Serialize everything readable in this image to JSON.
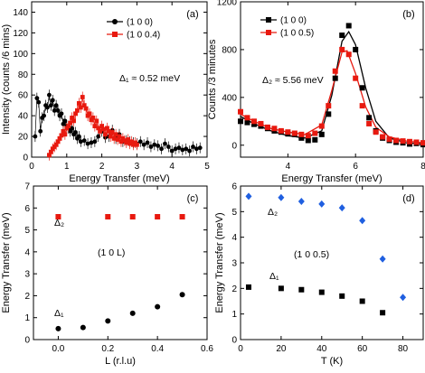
{
  "chart_data": [
    {
      "panel": "(a)",
      "type": "scatter",
      "xlabel": "Energy Transfer (meV)",
      "ylabel": "Intensity (counts /6 mins)",
      "xlim": [
        0,
        5
      ],
      "ylim": [
        0,
        150
      ],
      "xticks": [
        0,
        1,
        2,
        3,
        4,
        5
      ],
      "yticks": [
        0,
        20,
        40,
        60,
        80,
        100,
        120,
        140
      ],
      "annotation": "Δ₁ ≈ 0.52 meV",
      "legend": "top-right",
      "series": [
        {
          "name": "(1 0 0)",
          "color": "#000000",
          "marker": "circle",
          "points": [
            [
              0.1,
              20
            ],
            [
              0.15,
              57
            ],
            [
              0.2,
              53
            ],
            [
              0.25,
              25
            ],
            [
              0.3,
              38
            ],
            [
              0.35,
              40
            ],
            [
              0.4,
              50
            ],
            [
              0.45,
              48
            ],
            [
              0.5,
              60
            ],
            [
              0.55,
              50
            ],
            [
              0.6,
              55
            ],
            [
              0.65,
              45
            ],
            [
              0.7,
              50
            ],
            [
              0.75,
              45
            ],
            [
              0.8,
              40
            ],
            [
              0.85,
              42
            ],
            [
              0.9,
              32
            ],
            [
              0.95,
              35
            ],
            [
              1.0,
              30
            ],
            [
              1.05,
              28
            ],
            [
              1.1,
              25
            ],
            [
              1.15,
              28
            ],
            [
              1.2,
              22
            ],
            [
              1.25,
              24
            ],
            [
              1.3,
              18
            ],
            [
              1.35,
              20
            ],
            [
              1.4,
              15
            ],
            [
              1.5,
              16
            ],
            [
              1.6,
              13
            ],
            [
              1.7,
              14
            ],
            [
              1.8,
              15
            ],
            [
              1.9,
              20
            ],
            [
              2.0,
              25
            ],
            [
              2.1,
              19
            ],
            [
              2.2,
              20
            ],
            [
              2.3,
              26
            ],
            [
              2.4,
              18
            ],
            [
              2.5,
              22
            ],
            [
              2.6,
              15
            ],
            [
              2.7,
              16
            ],
            [
              2.8,
              15
            ],
            [
              2.9,
              14
            ],
            [
              3.0,
              13
            ],
            [
              3.1,
              15
            ],
            [
              3.2,
              12
            ],
            [
              3.3,
              14
            ],
            [
              3.4,
              10
            ],
            [
              3.5,
              12
            ],
            [
              3.6,
              11
            ],
            [
              3.7,
              8
            ],
            [
              3.8,
              13
            ],
            [
              3.9,
              10
            ],
            [
              4.0,
              6
            ],
            [
              4.1,
              8
            ],
            [
              4.2,
              9
            ],
            [
              4.3,
              7
            ],
            [
              4.4,
              8
            ],
            [
              4.5,
              6
            ],
            [
              4.6,
              10
            ],
            [
              4.7,
              8
            ],
            [
              4.8,
              9
            ]
          ]
        },
        {
          "name": "(1 0 0.4)",
          "color": "#e8190f",
          "marker": "square",
          "points": [
            [
              0.5,
              2
            ],
            [
              0.55,
              5
            ],
            [
              0.6,
              8
            ],
            [
              0.65,
              10
            ],
            [
              0.7,
              12
            ],
            [
              0.75,
              15
            ],
            [
              0.8,
              18
            ],
            [
              0.85,
              21
            ],
            [
              0.9,
              25
            ],
            [
              0.95,
              22
            ],
            [
              1.0,
              28
            ],
            [
              1.05,
              30
            ],
            [
              1.1,
              33
            ],
            [
              1.15,
              38
            ],
            [
              1.2,
              35
            ],
            [
              1.25,
              42
            ],
            [
              1.3,
              45
            ],
            [
              1.35,
              52
            ],
            [
              1.4,
              48
            ],
            [
              1.45,
              58
            ],
            [
              1.5,
              50
            ],
            [
              1.55,
              47
            ],
            [
              1.6,
              40
            ],
            [
              1.65,
              42
            ],
            [
              1.7,
              36
            ],
            [
              1.75,
              38
            ],
            [
              1.8,
              30
            ],
            [
              1.85,
              35
            ],
            [
              1.9,
              28
            ],
            [
              1.95,
              25
            ],
            [
              2.0,
              30
            ],
            [
              2.05,
              27
            ],
            [
              2.1,
              22
            ],
            [
              2.15,
              28
            ],
            [
              2.2,
              25
            ],
            [
              2.25,
              20
            ],
            [
              2.3,
              24
            ],
            [
              2.35,
              18
            ],
            [
              2.4,
              22
            ],
            [
              2.45,
              17
            ],
            [
              2.5,
              20
            ],
            [
              2.55,
              15
            ],
            [
              2.6,
              18
            ],
            [
              2.65,
              16
            ],
            [
              2.7,
              14
            ],
            [
              2.75,
              17
            ],
            [
              2.8,
              13
            ],
            [
              2.85,
              15
            ],
            [
              2.9,
              12
            ],
            [
              2.95,
              14
            ],
            [
              3.0,
              12
            ]
          ]
        }
      ]
    },
    {
      "panel": "(b)",
      "type": "scatter",
      "xlabel": "Energy Transfer (meV)",
      "ylabel": "Counts /3 minutes",
      "xlim": [
        2.6,
        8
      ],
      "ylim": [
        -100,
        1200
      ],
      "xticks": [
        4,
        6,
        8
      ],
      "yticks": [
        0,
        400,
        800,
        1200
      ],
      "annotation": "Δ₂ ≈ 5.56 meV",
      "legend": "top-left",
      "series": [
        {
          "name": "(1 0 0)",
          "color": "#000000",
          "marker": "square",
          "points": [
            [
              2.6,
              200
            ],
            [
              2.8,
              190
            ],
            [
              3.0,
              175
            ],
            [
              3.2,
              160
            ],
            [
              3.4,
              140
            ],
            [
              3.6,
              120
            ],
            [
              3.8,
              110
            ],
            [
              4.0,
              95
            ],
            [
              4.2,
              90
            ],
            [
              4.4,
              60
            ],
            [
              4.6,
              40
            ],
            [
              4.8,
              45
            ],
            [
              5.0,
              90
            ],
            [
              5.2,
              260
            ],
            [
              5.4,
              560
            ],
            [
              5.6,
              920
            ],
            [
              5.8,
              1000
            ],
            [
              6.0,
              800
            ],
            [
              6.2,
              480
            ],
            [
              6.4,
              230
            ],
            [
              6.6,
              120
            ],
            [
              6.8,
              60
            ],
            [
              7.0,
              40
            ],
            [
              7.2,
              25
            ],
            [
              7.4,
              20
            ],
            [
              7.6,
              10
            ],
            [
              7.8,
              15
            ],
            [
              8.0,
              5
            ]
          ],
          "fit": [
            [
              2.6,
              240
            ],
            [
              3.0,
              180
            ],
            [
              3.5,
              120
            ],
            [
              4.0,
              80
            ],
            [
              4.5,
              60
            ],
            [
              5.0,
              120
            ],
            [
              5.3,
              420
            ],
            [
              5.6,
              870
            ],
            [
              5.8,
              950
            ],
            [
              6.0,
              840
            ],
            [
              6.3,
              480
            ],
            [
              6.6,
              200
            ],
            [
              7.0,
              60
            ],
            [
              7.5,
              20
            ],
            [
              8.0,
              10
            ]
          ]
        },
        {
          "name": "(1 0 0.5)",
          "color": "#e8190f",
          "marker": "square",
          "points": [
            [
              2.6,
              280
            ],
            [
              2.8,
              230
            ],
            [
              3.0,
              200
            ],
            [
              3.2,
              180
            ],
            [
              3.4,
              150
            ],
            [
              3.6,
              140
            ],
            [
              3.8,
              120
            ],
            [
              4.0,
              110
            ],
            [
              4.2,
              100
            ],
            [
              4.4,
              90
            ],
            [
              4.6,
              80
            ],
            [
              4.8,
              100
            ],
            [
              5.0,
              160
            ],
            [
              5.2,
              330
            ],
            [
              5.4,
              620
            ],
            [
              5.6,
              800
            ],
            [
              5.8,
              760
            ],
            [
              6.0,
              560
            ],
            [
              6.2,
              330
            ],
            [
              6.4,
              180
            ],
            [
              6.6,
              110
            ],
            [
              6.8,
              70
            ],
            [
              7.0,
              50
            ],
            [
              7.2,
              40
            ],
            [
              7.4,
              35
            ],
            [
              7.6,
              30
            ],
            [
              7.8,
              25
            ],
            [
              8.0,
              20
            ]
          ],
          "fit": [
            [
              2.6,
              260
            ],
            [
              3.0,
              200
            ],
            [
              3.5,
              140
            ],
            [
              4.0,
              110
            ],
            [
              4.5,
              90
            ],
            [
              5.0,
              170
            ],
            [
              5.3,
              460
            ],
            [
              5.6,
              780
            ],
            [
              5.75,
              790
            ],
            [
              6.0,
              600
            ],
            [
              6.3,
              320
            ],
            [
              6.6,
              150
            ],
            [
              7.0,
              70
            ],
            [
              7.5,
              35
            ],
            [
              8.0,
              20
            ]
          ]
        }
      ]
    },
    {
      "panel": "(c)",
      "type": "scatter",
      "xlabel": "L (r.l.u)",
      "ylabel": "Energy Transfer (meV)",
      "xlim": [
        -0.1,
        0.6
      ],
      "ylim": [
        0,
        7
      ],
      "xticks": [
        0.0,
        0.2,
        0.4,
        0.6
      ],
      "yticks": [
        0,
        1,
        2,
        3,
        4,
        5,
        6,
        7
      ],
      "annotations": [
        "Δ₂",
        "(1 0 L)",
        "Δ₁"
      ],
      "series": [
        {
          "name": "Δ₂",
          "color": "#e8190f",
          "marker": "square",
          "points": [
            [
              0.0,
              5.6
            ],
            [
              0.2,
              5.6
            ],
            [
              0.3,
              5.6
            ],
            [
              0.4,
              5.6
            ],
            [
              0.5,
              5.6
            ]
          ]
        },
        {
          "name": "Δ₁",
          "color": "#000000",
          "marker": "circle",
          "points": [
            [
              0.0,
              0.5
            ],
            [
              0.1,
              0.55
            ],
            [
              0.2,
              0.85
            ],
            [
              0.3,
              1.2
            ],
            [
              0.4,
              1.5
            ],
            [
              0.5,
              2.05
            ]
          ]
        }
      ]
    },
    {
      "panel": "(d)",
      "type": "scatter",
      "xlabel": "T (K)",
      "ylabel": "Energy Transfer (meV)",
      "xlim": [
        0,
        90
      ],
      "ylim": [
        0,
        6
      ],
      "xticks": [
        0,
        20,
        40,
        60,
        80
      ],
      "yticks": [
        0,
        1,
        2,
        3,
        4,
        5,
        6
      ],
      "annotations": [
        "Δ₂",
        "(1 0 0.5)",
        "Δ₁"
      ],
      "series": [
        {
          "name": "Δ₂",
          "color": "#1f5fe0",
          "marker": "diamond",
          "points": [
            [
              4,
              5.6
            ],
            [
              20,
              5.55
            ],
            [
              30,
              5.4
            ],
            [
              40,
              5.3
            ],
            [
              50,
              5.15
            ],
            [
              60,
              4.65
            ],
            [
              70,
              3.15
            ],
            [
              80,
              1.65
            ]
          ]
        },
        {
          "name": "Δ₁",
          "color": "#000000",
          "marker": "square",
          "points": [
            [
              4,
              2.05
            ],
            [
              20,
              2.0
            ],
            [
              30,
              1.95
            ],
            [
              40,
              1.85
            ],
            [
              50,
              1.7
            ],
            [
              60,
              1.5
            ],
            [
              70,
              1.05
            ]
          ]
        }
      ]
    }
  ]
}
